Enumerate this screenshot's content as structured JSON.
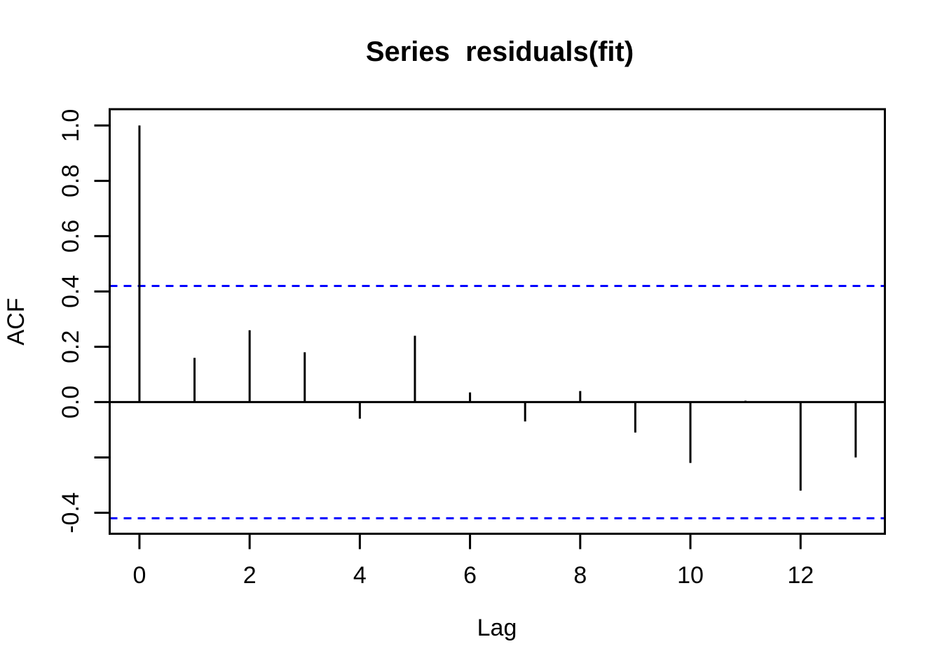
{
  "chart_data": {
    "type": "bar",
    "subtype": "acf-spike-plot",
    "title": "Series  residuals(fit)",
    "xlabel": "Lag",
    "ylabel": "ACF",
    "x": [
      0,
      1,
      2,
      3,
      4,
      5,
      6,
      7,
      8,
      9,
      10,
      11,
      12,
      13
    ],
    "values": [
      1.0,
      0.16,
      0.26,
      0.18,
      -0.06,
      0.24,
      0.035,
      -0.07,
      0.04,
      -0.11,
      -0.22,
      0.005,
      -0.32,
      -0.2
    ],
    "confidence_bounds": {
      "upper": 0.42,
      "lower": -0.42,
      "line_style": "dashed",
      "color": "#0000ff"
    },
    "xlim": [
      -0.54,
      13.53
    ],
    "ylim": [
      -0.476,
      1.059
    ],
    "x_ticks": [
      {
        "v": 0,
        "label": "0"
      },
      {
        "v": 2,
        "label": "2"
      },
      {
        "v": 4,
        "label": "4"
      },
      {
        "v": 6,
        "label": "6"
      },
      {
        "v": 8,
        "label": "8"
      },
      {
        "v": 10,
        "label": "10"
      },
      {
        "v": 12,
        "label": "12"
      }
    ],
    "y_ticks": [
      {
        "v": 1.0,
        "label": "1.0"
      },
      {
        "v": 0.8,
        "label": "0.8"
      },
      {
        "v": 0.6,
        "label": "0.6"
      },
      {
        "v": 0.4,
        "label": "0.4"
      },
      {
        "v": 0.2,
        "label": "0.2"
      },
      {
        "v": 0.0,
        "label": "0.0"
      },
      {
        "v": -0.2,
        "label": ""
      },
      {
        "v": -0.4,
        "label": "-0.4"
      }
    ],
    "grid": false,
    "legend": null,
    "colors": {
      "spike": "#000000",
      "axis": "#000000",
      "background": "#ffffff"
    }
  }
}
